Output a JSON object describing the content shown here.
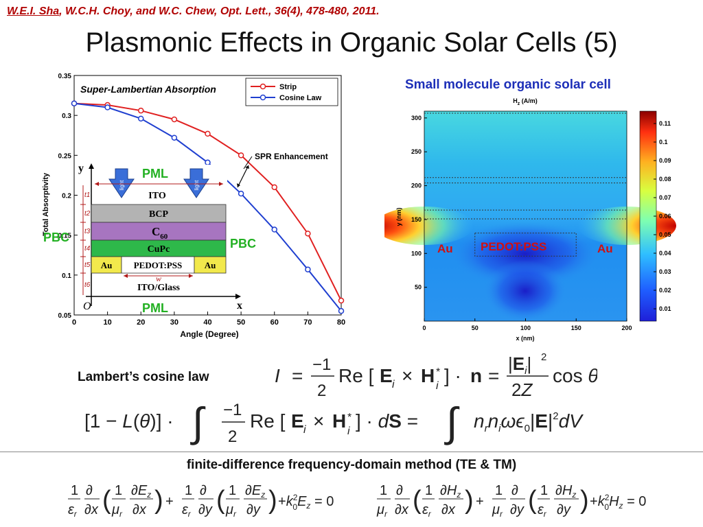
{
  "header": {
    "citation_author": "W.E.I. Sha",
    "citation_rest": ", W.C.H. Choy, and W.C. Chew, Opt. Lett., 36(4), 478-480, 2011",
    "citation_end": ".",
    "title": "Plasmonic Effects in Organic Solar Cells (5)"
  },
  "left_figure": {
    "inset_title": "Super-Lambertian Absorption",
    "annotation": "SPR Enhancement",
    "structure": {
      "y_axis": "y",
      "x_axis": "x",
      "origin": "O",
      "pml_top": "PML",
      "pml_bottom": "PML",
      "pbc_left": "PBC",
      "pbc_right": "PBC",
      "light": "light",
      "t_labels": [
        "t1",
        "t2",
        "t3",
        "t4",
        "t5",
        "t6"
      ],
      "w_label": "w",
      "layers": [
        "ITO",
        "BCP",
        "C60",
        "CuPc",
        "PEDOT:PSS",
        "ITO/Glass"
      ],
      "au": "Au",
      "c60_main": "C",
      "c60_sub": "60"
    }
  },
  "chart_data": [
    {
      "type": "line",
      "xlabel": "Angle (Degree)",
      "ylabel": "Total Absorptivity",
      "xlim": [
        0,
        80
      ],
      "ylim": [
        0.05,
        0.35
      ],
      "xticks": [
        0,
        10,
        20,
        30,
        40,
        50,
        60,
        70,
        80
      ],
      "yticks": [
        0.05,
        0.1,
        0.15,
        0.2,
        0.25,
        0.3,
        0.35
      ],
      "x": [
        0,
        10,
        20,
        30,
        40,
        50,
        60,
        70,
        80
      ],
      "series": [
        {
          "name": "Strip",
          "color": "#e02020",
          "values": [
            0.315,
            0.313,
            0.306,
            0.295,
            0.277,
            0.25,
            0.21,
            0.152,
            0.068
          ]
        },
        {
          "name": "Cosine Law",
          "color": "#1f3fd0",
          "values": [
            0.315,
            0.31,
            0.296,
            0.272,
            0.241,
            0.202,
            0.157,
            0.107,
            0.055
          ]
        }
      ],
      "legend": "top-right"
    },
    {
      "type": "heatmap",
      "title": "Small molecule organic solar cell",
      "header": "H",
      "header_sub": "z",
      "header_unit": " (A/m)",
      "xlabel": "x (nm)",
      "ylabel": "y (nm)",
      "xlim": [
        0,
        200
      ],
      "ylim": [
        0,
        310
      ],
      "xticks": [
        0,
        50,
        100,
        150,
        200
      ],
      "yticks": [
        50,
        100,
        150,
        200,
        250,
        300
      ],
      "colorbar_ticks": [
        "0.11",
        "0.1",
        "0.09",
        "0.08",
        "0.07",
        "0.06",
        "0.05",
        "0.04",
        "0.03",
        "0.02",
        "0.01"
      ],
      "labels": {
        "au_left": "Au",
        "center": "PEDOT:PSS",
        "au_right": "Au"
      }
    }
  ],
  "equations": {
    "lambert_label": "Lambert’s cosine law",
    "method_label": "finite-difference frequency-domain method (TE & TM)"
  },
  "colors": {
    "citation": "#b00000",
    "heading_blue": "#1d2fb8",
    "label_green": "#22b022"
  }
}
